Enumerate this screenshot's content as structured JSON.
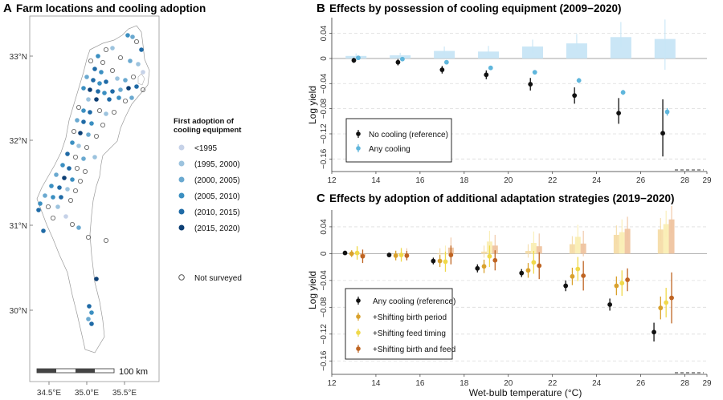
{
  "panel_a": {
    "letter": "A",
    "title": "Farm locations and cooling adoption",
    "lat_labels": [
      "33°N",
      "32°N",
      "31°N",
      "30°N"
    ],
    "lon_labels": [
      "34.5°E",
      "35.0°E",
      "35.5°E"
    ],
    "scale_label": "100 km",
    "legend_title": [
      "First adoption of",
      "cooling equipment"
    ],
    "legend_items": [
      {
        "label": "<1995",
        "color": "#c6d2e8"
      },
      {
        "label": "(1995, 2000)",
        "color": "#9cc3de"
      },
      {
        "label": "(2000, 2005)",
        "color": "#6aa9d0"
      },
      {
        "label": "(2005, 2010)",
        "color": "#3b8fc1"
      },
      {
        "label": "(2010, 2015)",
        "color": "#1f6aa6"
      },
      {
        "label": "(2015, 2020)",
        "color": "#0d3f74"
      }
    ],
    "not_surveyed_label": "Not surveyed"
  },
  "chart_data": [
    {
      "id": "B",
      "type": "point-errorbar-with-bars",
      "letter": "B",
      "title": "Effects by possession of cooling equipment (2009−2020)",
      "xlabel": "",
      "ylabel": "Log yield",
      "xlim": [
        12,
        29
      ],
      "ylim": [
        -0.18,
        0.065
      ],
      "xticks": [
        12,
        14,
        16,
        18,
        20,
        22,
        24,
        26,
        28
      ],
      "yticks": [
        0.04,
        0,
        -0.04,
        -0.08,
        -0.12,
        -0.16
      ],
      "ytick_labels": [
        "0.04",
        "0",
        "−0.04",
        "−0.08",
        "−0.12",
        "−0.16"
      ],
      "x_right_label": "29",
      "legend": [
        "No cooling (reference)",
        "Any cooling"
      ],
      "series": [
        {
          "name": "No cooling (reference)",
          "color": "#111111",
          "x": [
            13.0,
            15.0,
            17.0,
            19.0,
            21.0,
            23.0,
            25.0,
            27.0
          ],
          "y": [
            -0.003,
            -0.006,
            -0.018,
            -0.026,
            -0.041,
            -0.059,
            -0.087,
            -0.119
          ],
          "lo": [
            -0.007,
            -0.011,
            -0.024,
            -0.033,
            -0.051,
            -0.072,
            -0.104,
            -0.156
          ],
          "hi": [
            0.001,
            -0.001,
            -0.012,
            -0.019,
            -0.031,
            -0.046,
            -0.063,
            -0.065
          ]
        },
        {
          "name": "Any cooling",
          "color": "#5fb6dc",
          "x": [
            13.2,
            15.2,
            17.2,
            19.2,
            21.2,
            23.2,
            25.2,
            27.2
          ],
          "y": [
            0.001,
            -0.001,
            -0.006,
            -0.015,
            -0.022,
            -0.035,
            -0.054,
            -0.085
          ],
          "lo": [
            -0.001,
            -0.003,
            -0.008,
            -0.018,
            -0.025,
            -0.039,
            -0.058,
            -0.091
          ],
          "hi": [
            0.003,
            0.001,
            -0.004,
            -0.012,
            -0.019,
            -0.031,
            -0.05,
            -0.079
          ]
        }
      ],
      "bars": {
        "color": "#c7e5f6",
        "x": [
          13.1,
          15.1,
          17.1,
          19.1,
          21.1,
          23.1,
          25.1,
          27.1
        ],
        "values": [
          0.004,
          0.005,
          0.012,
          0.011,
          0.019,
          0.024,
          0.034,
          0.031
        ],
        "lo": [
          0.001,
          0.001,
          0.005,
          0.004,
          0.009,
          0.013,
          0.017,
          -0.018
        ],
        "hi": [
          0.008,
          0.009,
          0.019,
          0.02,
          0.03,
          0.039,
          0.058,
          0.062
        ]
      }
    },
    {
      "id": "C",
      "type": "point-errorbar-with-bars",
      "letter": "C",
      "title": "Effects by adoption of additional adaptation strategies (2019−2020)",
      "xlabel": "Wet-bulb temperature (°C)",
      "ylabel": "Log yield",
      "xlim": [
        12,
        29
      ],
      "ylim": [
        -0.18,
        0.065
      ],
      "xticks": [
        12,
        14,
        16,
        18,
        20,
        22,
        24,
        26,
        28
      ],
      "yticks": [
        0.04,
        0,
        -0.04,
        -0.08,
        -0.12,
        -0.16
      ],
      "ytick_labels": [
        "0.04",
        "0",
        "−0.04",
        "−0.08",
        "−0.12",
        "−0.16"
      ],
      "x_right_label": "29",
      "legend": [
        "Any cooling (reference)",
        "+Shifting birth period",
        "+Shifting feed timing",
        "+Shifting birth and feed"
      ],
      "series": [
        {
          "name": "Any cooling (reference)",
          "color": "#111111",
          "x": [
            12.6,
            14.6,
            16.6,
            18.6,
            20.6,
            22.6,
            24.6,
            26.6
          ],
          "y": [
            0.001,
            -0.002,
            -0.011,
            -0.022,
            -0.029,
            -0.048,
            -0.076,
            -0.117
          ],
          "lo": [
            -0.001,
            -0.005,
            -0.016,
            -0.028,
            -0.035,
            -0.056,
            -0.085,
            -0.131
          ],
          "hi": [
            0.003,
            0.001,
            -0.006,
            -0.016,
            -0.023,
            -0.04,
            -0.067,
            -0.103
          ]
        },
        {
          "name": "+Shifting birth period",
          "color": "#d9a12c",
          "x": [
            12.9,
            14.9,
            16.9,
            18.9,
            20.9,
            22.9,
            24.9,
            26.9
          ],
          "y": [
            0.0,
            -0.003,
            -0.011,
            -0.019,
            -0.025,
            -0.034,
            -0.048,
            -0.081
          ],
          "lo": [
            -0.005,
            -0.01,
            -0.02,
            -0.029,
            -0.036,
            -0.047,
            -0.062,
            -0.098
          ],
          "hi": [
            0.005,
            0.004,
            -0.002,
            -0.009,
            -0.014,
            -0.021,
            -0.034,
            -0.064
          ]
        },
        {
          "name": "+Shifting feed timing",
          "color": "#f0d94a",
          "x": [
            13.15,
            15.15,
            17.15,
            19.15,
            21.15,
            23.15,
            25.15,
            27.15
          ],
          "y": [
            0.001,
            -0.002,
            -0.012,
            -0.004,
            -0.013,
            -0.023,
            -0.044,
            -0.073
          ],
          "lo": [
            -0.009,
            -0.012,
            -0.027,
            -0.02,
            -0.03,
            -0.041,
            -0.063,
            -0.095
          ],
          "hi": [
            0.011,
            0.008,
            0.003,
            0.012,
            0.004,
            -0.005,
            -0.025,
            -0.051
          ]
        },
        {
          "name": "+Shifting birth and feed",
          "color": "#bf6422",
          "x": [
            13.4,
            15.4,
            17.4,
            19.4,
            21.4,
            23.4,
            25.4,
            27.4
          ],
          "y": [
            -0.004,
            -0.003,
            -0.002,
            -0.01,
            -0.018,
            -0.033,
            -0.039,
            -0.066
          ],
          "lo": [
            -0.014,
            -0.01,
            -0.016,
            -0.025,
            -0.038,
            -0.055,
            -0.056,
            -0.104
          ],
          "hi": [
            0.006,
            0.004,
            0.012,
            0.005,
            0.002,
            -0.011,
            -0.022,
            -0.028
          ]
        }
      ],
      "bars": {
        "colors": [
          "#f5dca8",
          "#faeeb4",
          "#efc4a0"
        ],
        "x": [
          [
            12.9,
            13.15,
            13.4
          ],
          [
            14.9,
            15.15,
            15.4
          ],
          [
            16.9,
            17.15,
            17.4
          ],
          [
            18.9,
            19.15,
            19.4
          ],
          [
            20.9,
            21.15,
            21.4
          ],
          [
            22.9,
            23.15,
            23.4
          ],
          [
            24.9,
            25.15,
            25.4
          ],
          [
            26.9,
            27.15,
            27.4
          ]
        ],
        "values": [
          [
            0.0,
            0.001,
            -0.003
          ],
          [
            -0.001,
            0.0,
            0.0
          ],
          [
            0.0,
            -0.001,
            0.009
          ],
          [
            0.003,
            0.018,
            0.012
          ],
          [
            0.004,
            0.016,
            0.011
          ],
          [
            0.014,
            0.025,
            0.015
          ],
          [
            0.028,
            0.032,
            0.037
          ],
          [
            0.036,
            0.044,
            0.051
          ]
        ],
        "lo": [
          [
            -0.005,
            -0.008,
            -0.012
          ],
          [
            -0.007,
            -0.009,
            -0.008
          ],
          [
            -0.008,
            -0.014,
            -0.006
          ],
          [
            -0.006,
            0.002,
            -0.004
          ],
          [
            -0.006,
            -0.001,
            -0.008
          ],
          [
            0.002,
            0.006,
            -0.004
          ],
          [
            0.014,
            0.013,
            0.019
          ],
          [
            0.019,
            0.024,
            0.031
          ]
        ],
        "hi": [
          [
            0.005,
            0.01,
            0.006
          ],
          [
            0.005,
            0.009,
            0.008
          ],
          [
            0.008,
            0.012,
            0.024
          ],
          [
            0.012,
            0.034,
            0.028
          ],
          [
            0.014,
            0.033,
            0.03
          ],
          [
            0.026,
            0.043,
            0.034
          ],
          [
            0.042,
            0.051,
            0.055
          ],
          [
            0.053,
            0.064,
            0.071
          ]
        ]
      }
    }
  ]
}
